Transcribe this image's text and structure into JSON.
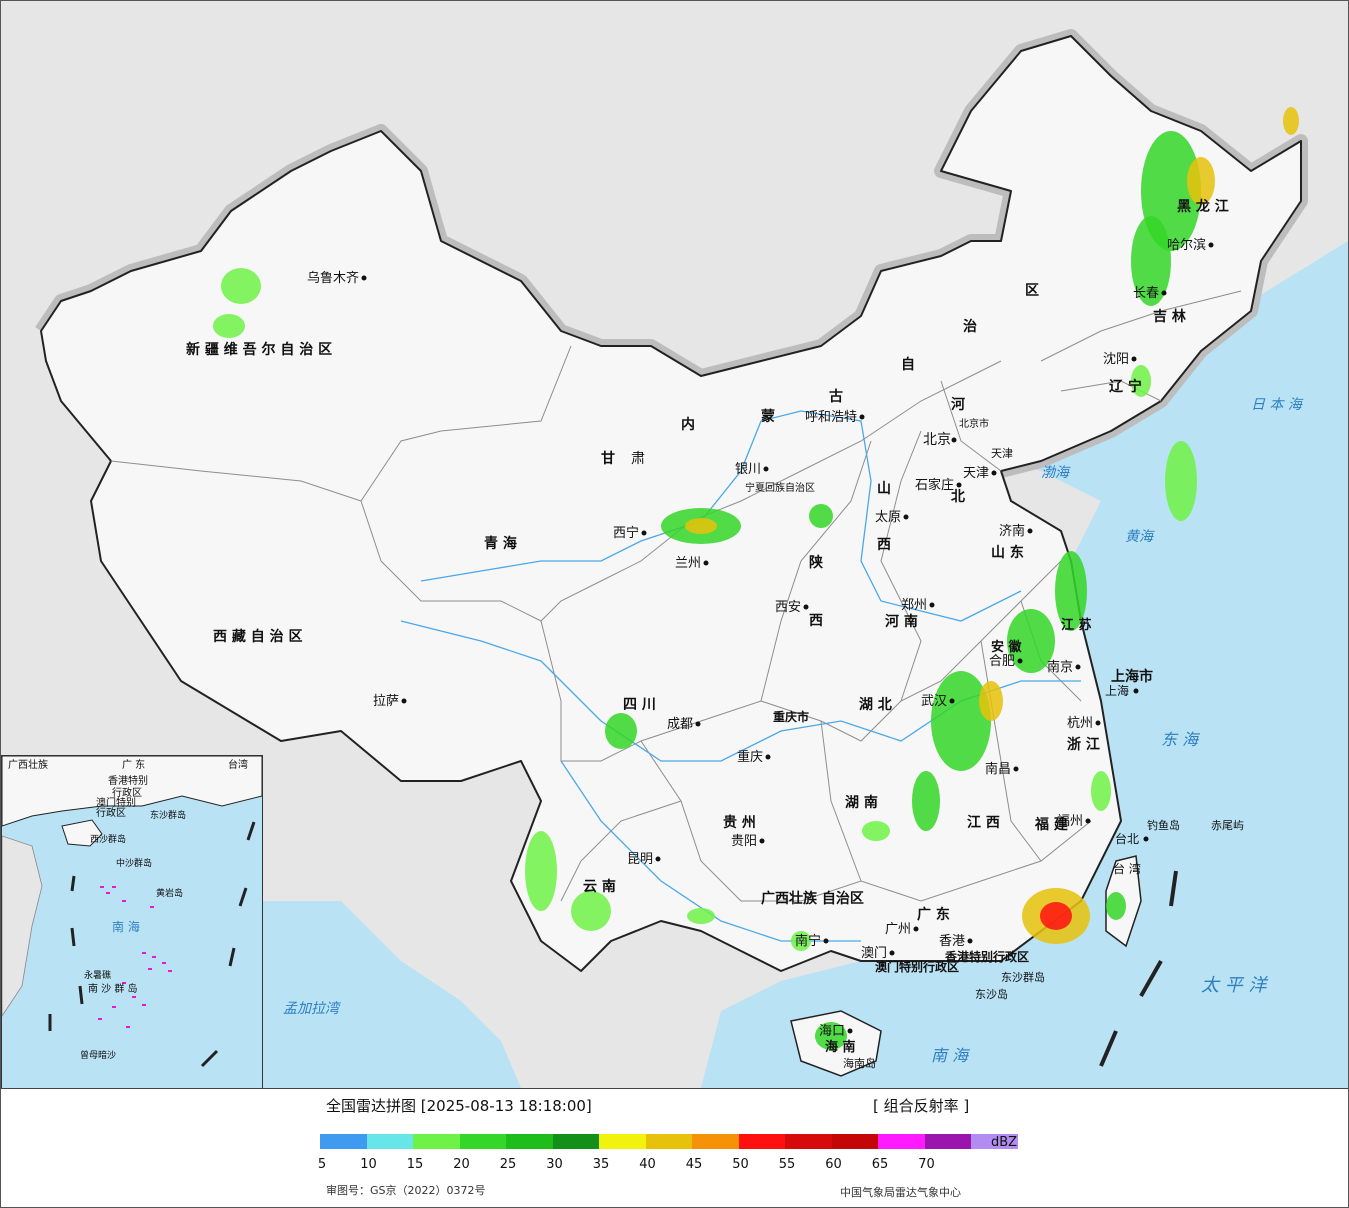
{
  "title": "全国雷达拼图 [2025-08-13 18:18:00]",
  "product": "[ 组合反射率 ]",
  "unit": "dBZ",
  "approval_number": "审图号：GS京（2022）0372号",
  "source": "中国气象局雷达气象中心",
  "scale": {
    "colors": [
      "#3e9bf0",
      "#67e6ea",
      "#6ef247",
      "#34d627",
      "#1fbd1a",
      "#12901a",
      "#f2f20f",
      "#e6c20a",
      "#f59208",
      "#ff1010",
      "#d60a0a",
      "#c40606",
      "#ff1aff",
      "#9a14ad",
      "#b28cf0"
    ],
    "ticks": [
      "5",
      "10",
      "15",
      "20",
      "25",
      "30",
      "35",
      "40",
      "45",
      "50",
      "55",
      "60",
      "65",
      "70"
    ]
  },
  "colors": {
    "land": "#f7f7f7",
    "sea": "#b9e2f5",
    "foreign": "#e6e6e6",
    "border": "#222222",
    "province": "#9a9a9a",
    "river": "#4aa8e8"
  },
  "map_labels": {
    "regions": [
      {
        "id": "xinjiang",
        "text": "新 疆 维 吾 尔 自 治 区"
      },
      {
        "id": "xizang",
        "text": "西 藏 自 治 区"
      },
      {
        "id": "qinghai",
        "text": "青     海"
      },
      {
        "id": "gansu1",
        "text": "甘"
      },
      {
        "id": "gansu2",
        "text": "肃"
      },
      {
        "id": "neimenggu1",
        "text": "内"
      },
      {
        "id": "neimenggu2",
        "text": "蒙"
      },
      {
        "id": "neimenggu3",
        "text": "古"
      },
      {
        "id": "neimenggu4",
        "text": "自"
      },
      {
        "id": "neimenggu5",
        "text": "治"
      },
      {
        "id": "neimenggu6",
        "text": "区"
      },
      {
        "id": "heilongjiang",
        "text": "黑   龙   江"
      },
      {
        "id": "jilin",
        "text": "吉  林"
      },
      {
        "id": "liaoning",
        "text": "辽 宁"
      },
      {
        "id": "hebei1",
        "text": "河"
      },
      {
        "id": "hebei2",
        "text": "北"
      },
      {
        "id": "shanxi1",
        "text": "山"
      },
      {
        "id": "shanxi2",
        "text": "西"
      },
      {
        "id": "shandong",
        "text": "山 东"
      },
      {
        "id": "henan",
        "text": "河  南"
      },
      {
        "id": "shaanxi1",
        "text": "陕"
      },
      {
        "id": "shaanxi2",
        "text": "西"
      },
      {
        "id": "ningxia",
        "text": "宁夏回族自治区"
      },
      {
        "id": "sichuan",
        "text": "四     川"
      },
      {
        "id": "chongqing",
        "text": "重庆市"
      },
      {
        "id": "hubei",
        "text": "湖   北"
      },
      {
        "id": "hunan",
        "text": "湖   南"
      },
      {
        "id": "anhui",
        "text": "安 徽"
      },
      {
        "id": "jiangsu",
        "text": "江 苏"
      },
      {
        "id": "zhejiang",
        "text": "浙 江"
      },
      {
        "id": "jiangxi",
        "text": "江  西"
      },
      {
        "id": "fujian",
        "text": "福 建"
      },
      {
        "id": "guizhou",
        "text": "贵   州"
      },
      {
        "id": "yunnan",
        "text": "云   南"
      },
      {
        "id": "guangxi",
        "text": "广西壮族 自治区"
      },
      {
        "id": "guangdong",
        "text": "广   东"
      },
      {
        "id": "hainan",
        "text": "海 南"
      },
      {
        "id": "taiwan",
        "text": "台 湾"
      },
      {
        "id": "shanghai",
        "text": "上海市"
      },
      {
        "id": "tianjin",
        "text": "天津"
      },
      {
        "id": "beijing",
        "text": "北京市"
      },
      {
        "id": "hk",
        "text": "香港特别行政区"
      },
      {
        "id": "macau",
        "text": "澳门特别行政区"
      }
    ],
    "cities": [
      {
        "id": "urumqi",
        "text": "乌鲁木齐"
      },
      {
        "id": "lhasa",
        "text": "拉萨"
      },
      {
        "id": "xining",
        "text": "西宁"
      },
      {
        "id": "lanzhou",
        "text": "兰州"
      },
      {
        "id": "yinchuan",
        "text": "银川"
      },
      {
        "id": "hohhot",
        "text": "呼和浩特"
      },
      {
        "id": "beijing_c",
        "text": "北京"
      },
      {
        "id": "tianjin_c",
        "text": "天津"
      },
      {
        "id": "shijiazhuang",
        "text": "石家庄"
      },
      {
        "id": "taiyuan",
        "text": "太原"
      },
      {
        "id": "jinan",
        "text": "济南"
      },
      {
        "id": "zhengzhou",
        "text": "郑州"
      },
      {
        "id": "xian",
        "text": "西安"
      },
      {
        "id": "chengdu",
        "text": "成都"
      },
      {
        "id": "chongqing_c",
        "text": "重庆"
      },
      {
        "id": "wuhan",
        "text": "武汉"
      },
      {
        "id": "hefei",
        "text": "合肥"
      },
      {
        "id": "nanjing",
        "text": "南京"
      },
      {
        "id": "shanghai_c",
        "text": "上海"
      },
      {
        "id": "hangzhou",
        "text": "杭州"
      },
      {
        "id": "nanchang",
        "text": "南昌"
      },
      {
        "id": "fuzhou",
        "text": "福州"
      },
      {
        "id": "taipei",
        "text": "台北"
      },
      {
        "id": "guiyang",
        "text": "贵阳"
      },
      {
        "id": "kunming",
        "text": "昆明"
      },
      {
        "id": "nanning",
        "text": "南宁"
      },
      {
        "id": "guangzhou",
        "text": "广州"
      },
      {
        "id": "hongkong",
        "text": "香港"
      },
      {
        "id": "macau_c",
        "text": "澳门"
      },
      {
        "id": "haikou",
        "text": "海口"
      },
      {
        "id": "shenyang",
        "text": "沈阳"
      },
      {
        "id": "changchun",
        "text": "长春"
      },
      {
        "id": "harbin",
        "text": "哈尔滨"
      }
    ],
    "seas": [
      {
        "id": "bohai",
        "text": "渤海"
      },
      {
        "id": "huanghai",
        "text": "黄海"
      },
      {
        "id": "donghai",
        "text": "东 海"
      },
      {
        "id": "nanhai",
        "text": "南      海"
      },
      {
        "id": "taipingyang",
        "text": "太 平 洋"
      },
      {
        "id": "ribenhai",
        "text": "日 本 海"
      },
      {
        "id": "mengjiala",
        "text": "孟加拉湾"
      },
      {
        "id": "hainandao",
        "text": "海南岛"
      },
      {
        "id": "diaoyudao",
        "text": "钓鱼岛"
      },
      {
        "id": "chiweiyu",
        "text": "赤尾屿"
      },
      {
        "id": "dongshaqundao",
        "text": "东沙群岛"
      },
      {
        "id": "dongshadao",
        "text": "东沙岛"
      }
    ],
    "inset": [
      {
        "id": "i_gx",
        "text": "广西壮族"
      },
      {
        "id": "i_gd",
        "text": "广   东"
      },
      {
        "id": "i_tw",
        "text": "台湾"
      },
      {
        "id": "i_hk",
        "text": "香港特别"
      },
      {
        "id": "i_hk2",
        "text": "行政区"
      },
      {
        "id": "i_mo",
        "text": "澳门特别"
      },
      {
        "id": "i_mo2",
        "text": "行政区"
      },
      {
        "id": "i_nanhai",
        "text": "南 海"
      },
      {
        "id": "i_xisha",
        "text": "西沙群岛"
      },
      {
        "id": "i_zhongsha",
        "text": "中沙群岛"
      },
      {
        "id": "i_huangyan",
        "text": "黄岩岛"
      },
      {
        "id": "i_nansha",
        "text": "南 沙 群 岛"
      },
      {
        "id": "i_yongshu",
        "text": "永暑礁"
      },
      {
        "id": "i_zengmu",
        "text": "曾母暗沙"
      },
      {
        "id": "i_dongsha",
        "text": "东沙群岛"
      }
    ]
  }
}
